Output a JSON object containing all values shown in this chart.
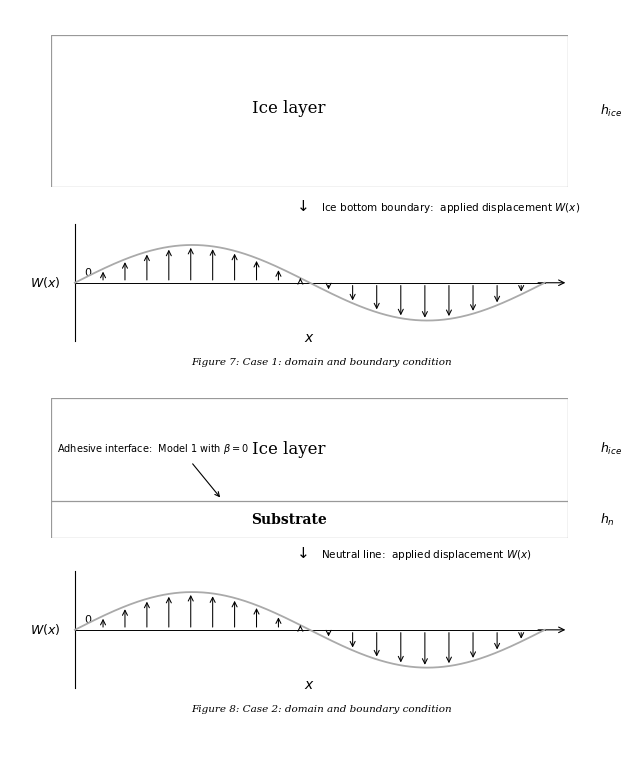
{
  "fig_width": 6.42,
  "fig_height": 7.8,
  "bg_color": "#ffffff",
  "box_edge_color": "#999999",
  "arrow_color": "#000000",
  "wave_color": "#aaaaaa",
  "panel1": {
    "ice_label": "Ice layer",
    "h_ice_label": "$h_{ice}$",
    "boundary_note": "Ice bottom boundary:  applied displacement $W(x)$",
    "caption": "Figure 7: Case 1: domain and boundary condition"
  },
  "panel2": {
    "ice_label": "Ice layer",
    "substrate_label": "Substrate",
    "adhesive_note": "Adhesive interface:  Model 1 with $\\beta = 0$",
    "neutral_note": "Neutral line:  applied displacement $W(x)$",
    "h_ice_label": "$h_{ice}$",
    "h_n_label": "$h_n$",
    "caption": "Figure 8: Case 2: domain and boundary condition"
  }
}
